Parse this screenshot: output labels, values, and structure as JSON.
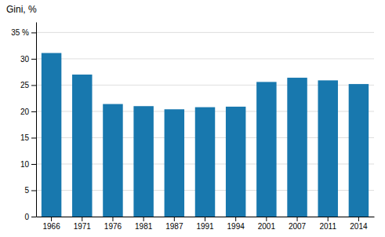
{
  "chart_data": {
    "type": "bar",
    "title": "Gini, %",
    "categories": [
      "1966",
      "1971",
      "1976",
      "1981",
      "1987",
      "1991",
      "1994",
      "2001",
      "2007",
      "2011",
      "2014"
    ],
    "values": [
      31.1,
      27.0,
      21.4,
      21.0,
      20.4,
      20.8,
      20.9,
      25.6,
      26.4,
      25.9,
      25.2
    ],
    "color": "#1878ae",
    "ylim": [
      0,
      37
    ],
    "yticks": [
      0,
      5,
      10,
      15,
      20,
      25,
      30,
      {
        "value": 35,
        "label": "35 %"
      }
    ],
    "grid": true
  }
}
